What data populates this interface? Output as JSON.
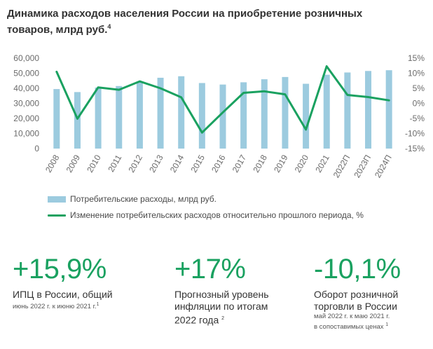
{
  "title": "Динамика расходов населения России на приобретение розничных товаров, млрд руб.",
  "title_footnote": "4",
  "chart_data": {
    "type": "bar+line",
    "categories": [
      "2008",
      "2009",
      "2010",
      "2011",
      "2012",
      "2013",
      "2014",
      "2015",
      "2016",
      "2017",
      "2018",
      "2019",
      "2020",
      "2021",
      "2022П",
      "2023П",
      "2024П"
    ],
    "series": [
      {
        "name": "Потребительские расходы, млрд руб.",
        "type": "bar",
        "axis": "left",
        "values": [
          39500,
          37500,
          40500,
          41500,
          44500,
          47000,
          48000,
          43500,
          42500,
          44000,
          46000,
          47500,
          43000,
          49000,
          50500,
          51500,
          52000
        ]
      },
      {
        "name": "Изменение потребительских расходов относительно прошлого периода, %",
        "type": "line",
        "axis": "right",
        "values": [
          10.5,
          -5.1,
          5.3,
          4.5,
          7.3,
          5.0,
          2.0,
          -9.7,
          -3.0,
          3.5,
          4.0,
          3.0,
          -8.7,
          12.3,
          2.8,
          2.1,
          1.0
        ]
      }
    ],
    "y_left": {
      "min": 0,
      "max": 60000,
      "ticks": [
        "0",
        "10,000",
        "20,000",
        "30,000",
        "40,000",
        "50,000",
        "60,000"
      ]
    },
    "y_right": {
      "min": -15,
      "max": 15,
      "ticks": [
        "-15%",
        "-10%",
        "-5%",
        "0%",
        "5%",
        "10%",
        "15%"
      ]
    },
    "colors": {
      "bar": "#9ccbdf",
      "line": "#1aa160",
      "axis_text": "#6b6b6b"
    }
  },
  "stats": [
    {
      "value": "+15,9%",
      "label": [
        "ИПЦ в России, общий"
      ],
      "sub": [
        "июнь 2022 г. к июню 2021 г."
      ],
      "footnote": "1"
    },
    {
      "value": "+17%",
      "label": [
        "Прогнозный уровень",
        "инфляции по итогам",
        "2022 года"
      ],
      "sub": [],
      "footnote": "2"
    },
    {
      "value": "-10,1%",
      "label": [
        "Оборот розничной",
        "торговли в России"
      ],
      "sub": [
        "май 2022 г. к маю 2021 г.",
        "в сопоставимых ценах"
      ],
      "footnote": "1"
    }
  ]
}
